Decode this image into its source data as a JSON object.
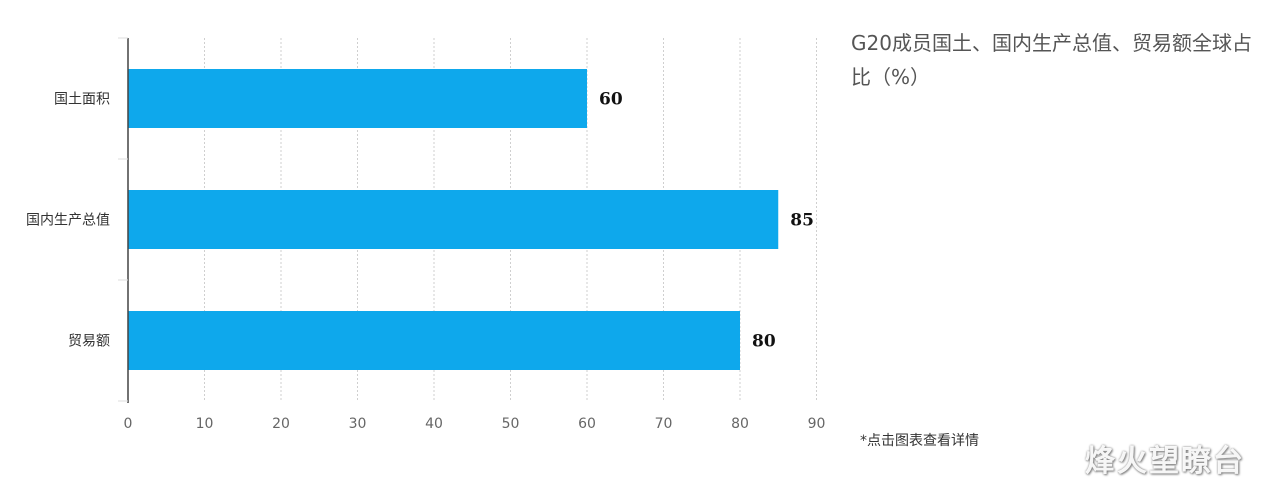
{
  "chart_data": {
    "type": "bar",
    "orientation": "horizontal",
    "title": "G20成员国土、国内生产总值、贸易额全球占比（%）",
    "categories": [
      "国土面积",
      "国内生产总值",
      "贸易额"
    ],
    "values": [
      60,
      85,
      80
    ],
    "xlim": [
      0,
      90
    ],
    "xticks": [
      0,
      10,
      20,
      30,
      40,
      50,
      60,
      70,
      80,
      90
    ],
    "grid": "vertical-dotted",
    "bar_color": "#0ea8ec",
    "data_labels": true
  },
  "note": "*点击图表查看详情",
  "watermark": "烽火望瞭台"
}
